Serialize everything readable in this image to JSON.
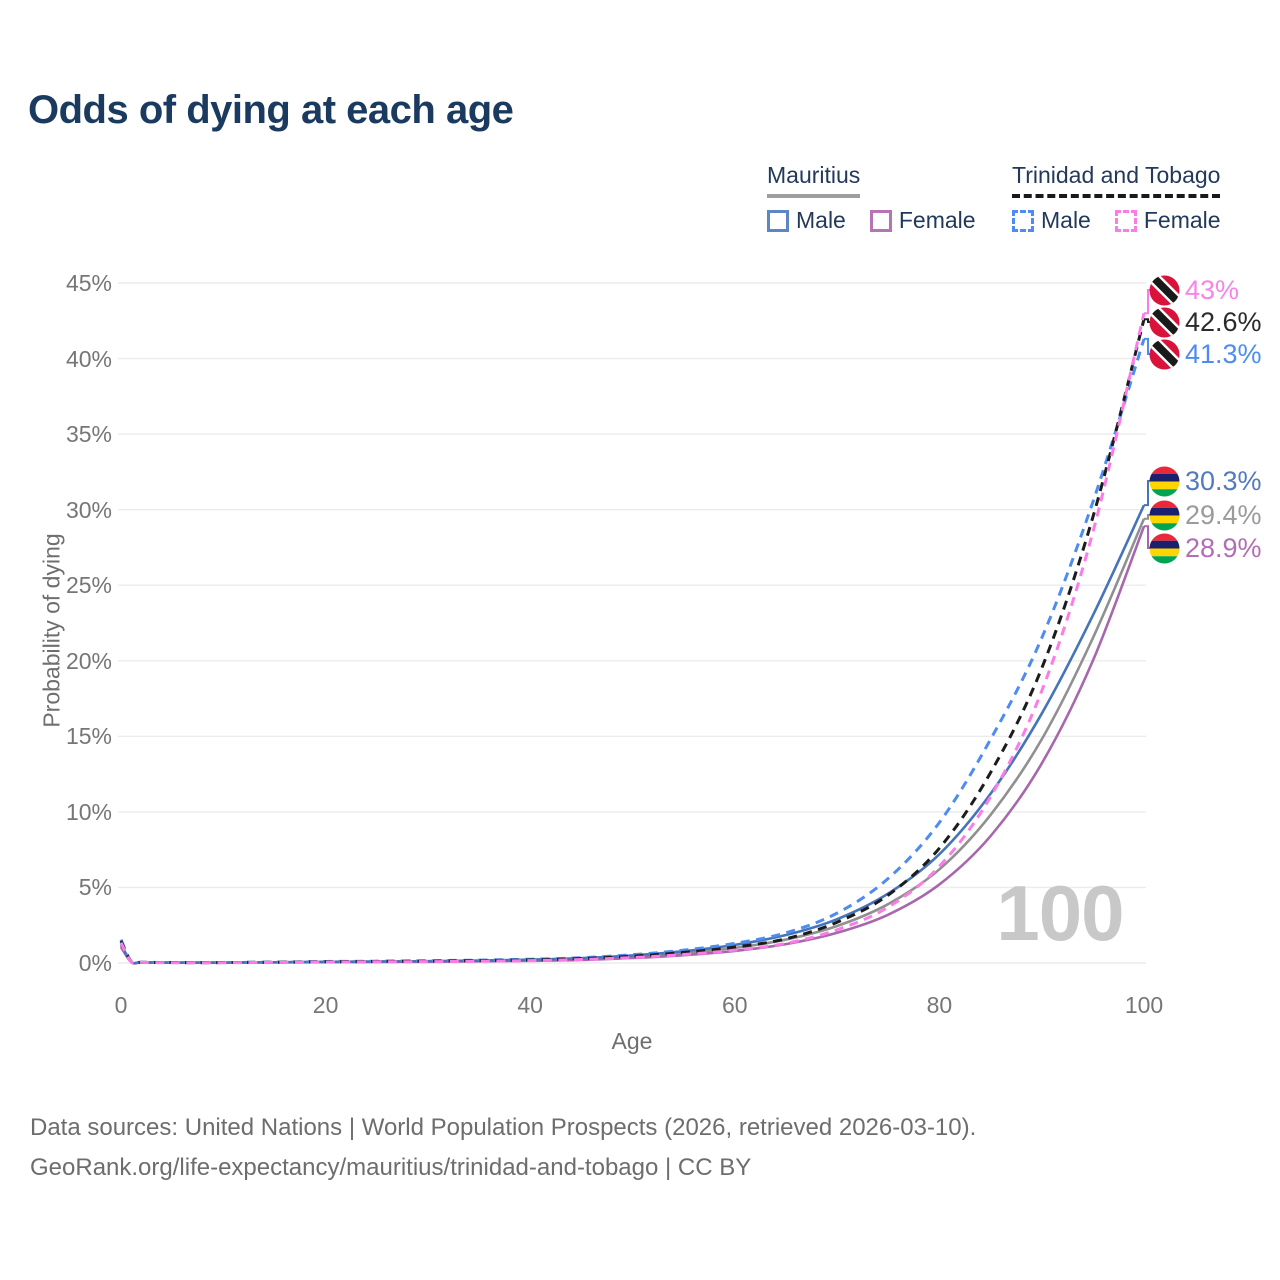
{
  "title": "Odds of dying at each age",
  "legend": {
    "mauritius": {
      "label": "Mauritius",
      "male": "Male",
      "female": "Female"
    },
    "trinidad_and_tobago": {
      "label": "Trinidad and Tobago",
      "male": "Male",
      "female": "Female"
    }
  },
  "watermark": "100",
  "footer": {
    "line1": "Data sources: United Nations | World Population Prospects (2026, retrieved 2026-03-10).",
    "line2": "GeoRank.org/life-expectancy/mauritius/trinidad-and-tobago | CC BY"
  },
  "chart_data": {
    "type": "line",
    "title": "Odds of dying at each age",
    "xlabel": "Age",
    "ylabel": "Probability of dying",
    "xlim": [
      0,
      100
    ],
    "ylim": [
      0,
      45
    ],
    "xticks": [
      0,
      20,
      40,
      60,
      80,
      100
    ],
    "yticks": [
      0,
      5,
      10,
      15,
      20,
      25,
      30,
      35,
      40,
      45
    ],
    "ytick_labels": [
      "0%",
      "5%",
      "10%",
      "15%",
      "20%",
      "25%",
      "30%",
      "35%",
      "40%",
      "45%"
    ],
    "grid": "horizontal-only",
    "legend_position": "top-right",
    "x": [
      0,
      1,
      2,
      5,
      10,
      15,
      20,
      25,
      30,
      35,
      40,
      45,
      50,
      55,
      60,
      65,
      70,
      75,
      80,
      85,
      90,
      95,
      100
    ],
    "series": [
      {
        "id": "mu_total",
        "name": "Mauritius — Total",
        "country": "Mauritius",
        "sex": "total",
        "style": "solid",
        "color": "#909090",
        "values": [
          1.15,
          0.07,
          0.035,
          0.025,
          0.025,
          0.045,
          0.07,
          0.09,
          0.1,
          0.14,
          0.18,
          0.26,
          0.42,
          0.65,
          1.0,
          1.55,
          2.45,
          3.9,
          6.2,
          9.8,
          14.8,
          21.5,
          29.4
        ],
        "end_label": "29.4%"
      },
      {
        "id": "mu_female",
        "name": "Mauritius — Female",
        "country": "Mauritius",
        "sex": "female",
        "style": "solid",
        "color": "#a867ad",
        "values": [
          1.05,
          0.06,
          0.03,
          0.02,
          0.02,
          0.04,
          0.05,
          0.07,
          0.08,
          0.11,
          0.14,
          0.2,
          0.33,
          0.52,
          0.8,
          1.25,
          2.0,
          3.2,
          5.2,
          8.4,
          13.2,
          20.0,
          28.9
        ],
        "end_label": "28.9%"
      },
      {
        "id": "mu_male",
        "name": "Mauritius — Male",
        "country": "Mauritius",
        "sex": "male",
        "style": "solid",
        "color": "#4674b9",
        "values": [
          1.25,
          0.08,
          0.04,
          0.03,
          0.03,
          0.05,
          0.08,
          0.1,
          0.12,
          0.16,
          0.22,
          0.32,
          0.5,
          0.78,
          1.2,
          1.85,
          2.9,
          4.6,
          7.2,
          11.2,
          16.5,
          23.0,
          30.3
        ],
        "end_label": "30.3%"
      },
      {
        "id": "tt_male",
        "name": "Trinidad and Tobago — Male",
        "country": "Trinidad and Tobago",
        "sex": "male",
        "style": "dashed",
        "color": "#4e8cf2",
        "values": [
          1.55,
          0.1,
          0.05,
          0.03,
          0.03,
          0.06,
          0.1,
          0.12,
          0.15,
          0.19,
          0.25,
          0.35,
          0.55,
          0.85,
          1.3,
          2.0,
          3.3,
          5.6,
          9.3,
          14.8,
          21.5,
          30.5,
          41.3
        ],
        "end_label": "41.3%"
      },
      {
        "id": "tt_total",
        "name": "Trinidad and Tobago — Total",
        "country": "Trinidad and Tobago",
        "sex": "total",
        "style": "dashed",
        "color": "#1c1c1c",
        "values": [
          1.45,
          0.09,
          0.045,
          0.03,
          0.03,
          0.05,
          0.08,
          0.1,
          0.12,
          0.16,
          0.2,
          0.29,
          0.45,
          0.7,
          1.05,
          1.6,
          2.7,
          4.5,
          7.6,
          12.6,
          19.5,
          29.5,
          42.6
        ],
        "end_label": "42.6%"
      },
      {
        "id": "tt_female",
        "name": "Trinidad and Tobago — Female",
        "country": "Trinidad and Tobago",
        "sex": "female",
        "style": "dashed",
        "color": "#fb7ce6",
        "values": [
          1.35,
          0.08,
          0.04,
          0.02,
          0.02,
          0.04,
          0.06,
          0.08,
          0.09,
          0.12,
          0.16,
          0.23,
          0.36,
          0.56,
          0.85,
          1.3,
          2.2,
          3.7,
          6.4,
          11.0,
          18.0,
          28.5,
          43.0
        ],
        "end_label": "43%"
      }
    ],
    "callouts": [
      {
        "label": "43%",
        "series": "tt_female",
        "flag": "trinidad-and-tobago",
        "text_color": "#f884e9",
        "leader_color": "#fb7ce6"
      },
      {
        "label": "42.6%",
        "series": "tt_total",
        "flag": "trinidad-and-tobago",
        "text_color": "#2b2b2b",
        "leader_color": "#1c1c1c"
      },
      {
        "label": "41.3%",
        "series": "tt_male",
        "flag": "trinidad-and-tobago",
        "text_color": "#4e8cf2",
        "leader_color": "#4e8cf2"
      },
      {
        "label": "30.3%",
        "series": "mu_male",
        "flag": "mauritius",
        "text_color": "#5379bf",
        "leader_color": "#4674b9"
      },
      {
        "label": "29.4%",
        "series": "mu_total",
        "flag": "mauritius",
        "text_color": "#9b9b9b",
        "leader_color": "#909090"
      },
      {
        "label": "28.9%",
        "series": "mu_female",
        "flag": "mauritius",
        "text_color": "#b26eb5",
        "leader_color": "#a867ad"
      }
    ],
    "flag_colors": {
      "trinidad_red": "#d8143c",
      "trinidad_black": "#1a1a1a",
      "trinidad_white": "#ffffff",
      "mauritius_red": "#ea2839",
      "mauritius_blue": "#1a206d",
      "mauritius_yellow": "#ffd500",
      "mauritius_green": "#00a551"
    }
  }
}
